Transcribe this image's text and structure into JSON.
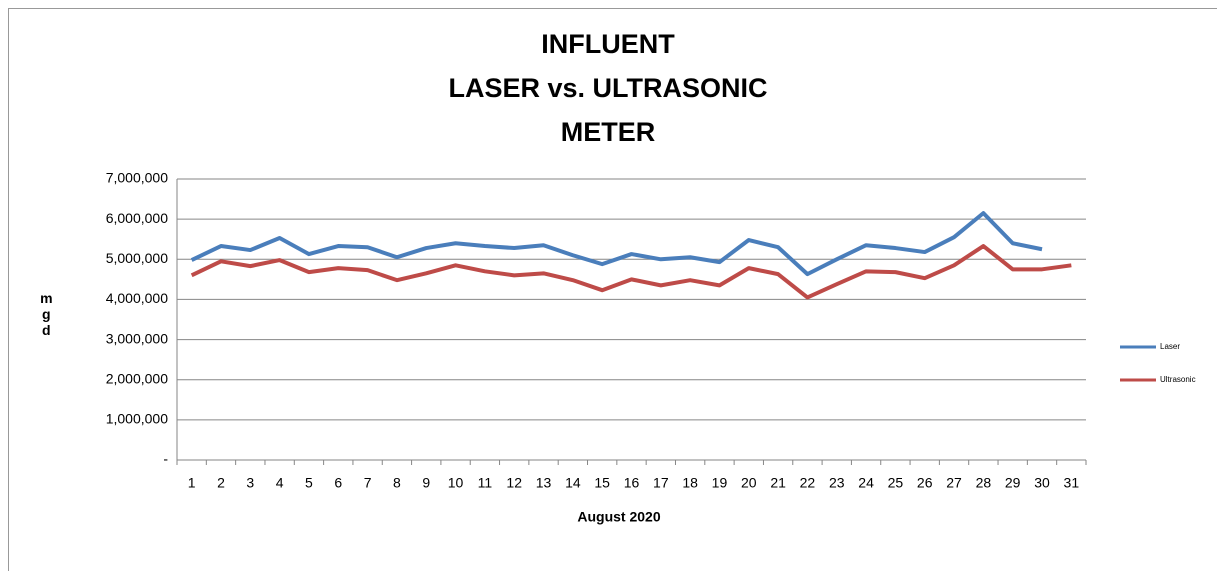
{
  "chart_data": {
    "type": "line",
    "title": [
      "INFLUENT",
      "LASER  vs. ULTRASONIC",
      "METER"
    ],
    "x_label": "August 2020",
    "y_label": "mgd",
    "categories": [
      1,
      2,
      3,
      4,
      5,
      6,
      7,
      8,
      9,
      10,
      11,
      12,
      13,
      14,
      15,
      16,
      17,
      18,
      19,
      20,
      21,
      22,
      23,
      24,
      25,
      26,
      27,
      28,
      29,
      30,
      31
    ],
    "series": [
      {
        "name": "Laser",
        "color": "#4a7ebb",
        "values": [
          4980000,
          5330000,
          5230000,
          5530000,
          5130000,
          5330000,
          5300000,
          5050000,
          5280000,
          5400000,
          5330000,
          5280000,
          5350000,
          5100000,
          4880000,
          5130000,
          5000000,
          5050000,
          4930000,
          5480000,
          5300000,
          4630000,
          5000000,
          5350000,
          5280000,
          5180000,
          5550000,
          6150000,
          5400000,
          5250000,
          null
        ]
      },
      {
        "name": "Ultrasonic",
        "color": "#be4b48",
        "values": [
          4600000,
          4950000,
          4830000,
          4980000,
          4680000,
          4780000,
          4730000,
          4480000,
          4650000,
          4850000,
          4700000,
          4600000,
          4650000,
          4480000,
          4230000,
          4500000,
          4350000,
          4480000,
          4350000,
          4780000,
          4630000,
          4050000,
          4380000,
          4700000,
          4680000,
          4530000,
          4850000,
          5330000,
          4750000,
          4750000,
          4850000
        ]
      }
    ],
    "ylim": [
      0,
      7000000
    ],
    "yticks": [
      {
        "value": 0,
        "label": "-"
      },
      {
        "value": 1000000,
        "label": "1,000,000"
      },
      {
        "value": 2000000,
        "label": "2,000,000"
      },
      {
        "value": 3000000,
        "label": "3,000,000"
      },
      {
        "value": 4000000,
        "label": "4,000,000"
      },
      {
        "value": 5000000,
        "label": "5,000,000"
      },
      {
        "value": 6000000,
        "label": "6,000,000"
      },
      {
        "value": 7000000,
        "label": "7,000,000"
      }
    ],
    "grid": true,
    "legend": "right"
  }
}
